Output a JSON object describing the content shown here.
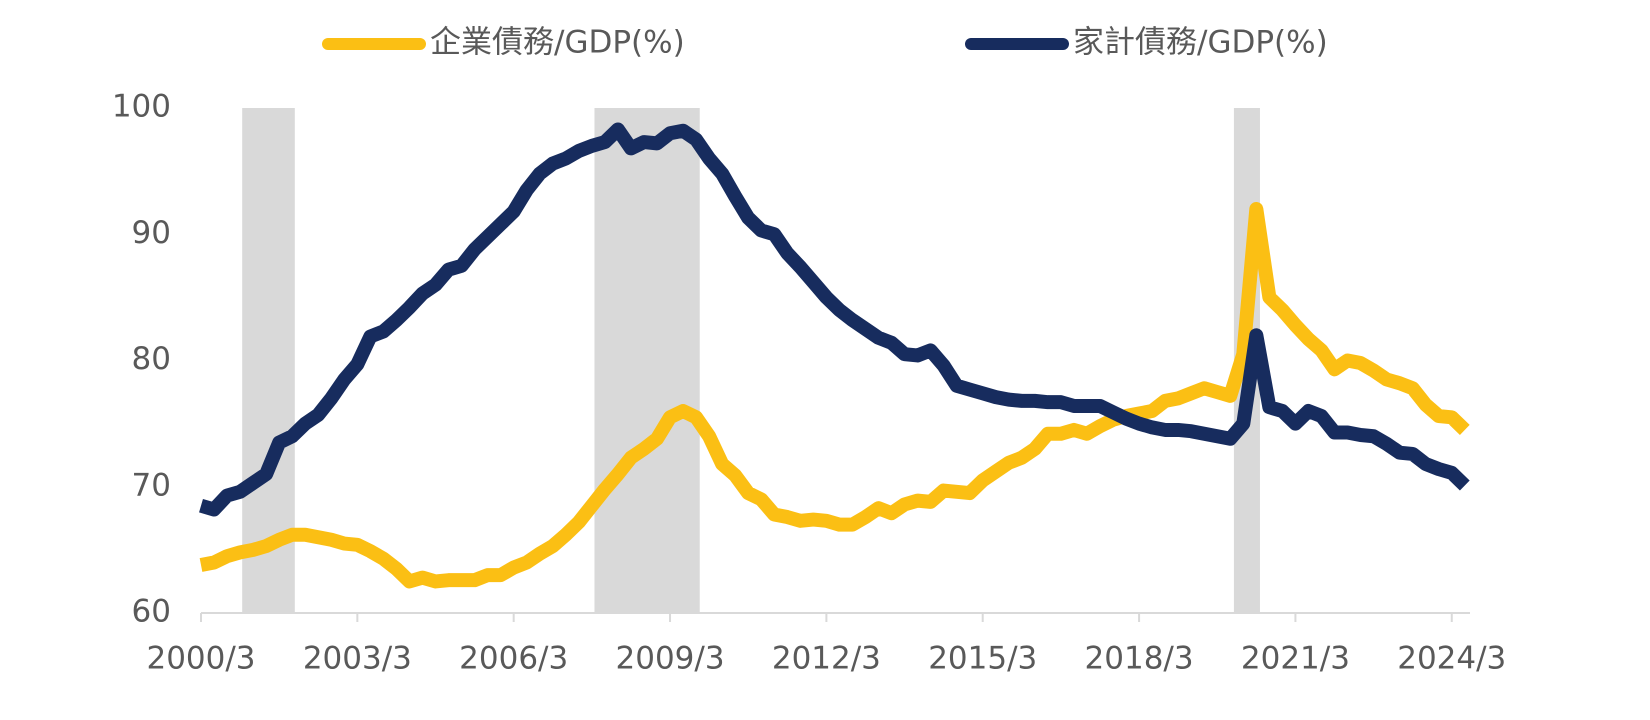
{
  "chart_data": {
    "type": "line",
    "series": [
      {
        "name": "企業債務/GDP(%)",
        "color": "#fbbf14",
        "values": [
          63.8,
          64.0,
          64.5,
          64.8,
          65.0,
          65.3,
          65.8,
          66.2,
          66.2,
          66.0,
          65.8,
          65.5,
          65.4,
          64.9,
          64.3,
          63.5,
          62.5,
          62.8,
          62.5,
          62.6,
          62.6,
          62.6,
          63.0,
          63.0,
          63.6,
          64.0,
          64.7,
          65.3,
          66.2,
          67.2,
          68.5,
          69.8,
          71.0,
          72.3,
          73.0,
          73.8,
          75.5,
          76.0,
          75.5,
          74.0,
          71.8,
          70.9,
          69.5,
          69.0,
          67.8,
          67.6,
          67.3,
          67.4,
          67.3,
          67.0,
          67.0,
          67.6,
          68.3,
          67.9,
          68.6,
          68.9,
          68.8,
          69.7,
          69.6,
          69.5,
          70.5,
          71.2,
          71.9,
          72.3,
          73.0,
          74.2,
          74.2,
          74.5,
          74.2,
          74.8,
          75.3,
          75.6,
          75.8,
          76.0,
          76.8,
          77.0,
          77.4,
          77.8,
          77.5,
          77.2,
          80.5,
          92.0,
          85.0,
          84.0,
          82.8,
          81.7,
          80.8,
          79.3,
          80.0,
          79.8,
          79.2,
          78.5,
          78.2,
          77.8,
          76.5,
          75.6,
          75.5,
          74.5
        ]
      },
      {
        "name": "家計債務/GDP(%)",
        "color": "#172c5e",
        "values": [
          68.5,
          68.2,
          69.3,
          69.6,
          70.3,
          71.0,
          73.5,
          74.0,
          75.0,
          75.7,
          77.0,
          78.5,
          79.7,
          81.9,
          82.3,
          83.2,
          84.2,
          85.3,
          86.0,
          87.2,
          87.5,
          88.8,
          89.8,
          90.8,
          91.8,
          93.5,
          94.8,
          95.6,
          96.0,
          96.6,
          97.0,
          97.3,
          98.3,
          96.8,
          97.3,
          97.2,
          98.0,
          98.2,
          97.5,
          96.0,
          94.8,
          93.0,
          91.3,
          90.3,
          90.0,
          88.5,
          87.4,
          86.2,
          85.0,
          84.0,
          83.2,
          82.5,
          81.8,
          81.4,
          80.5,
          80.4,
          80.8,
          79.6,
          78.0,
          77.7,
          77.4,
          77.1,
          76.9,
          76.8,
          76.8,
          76.7,
          76.7,
          76.4,
          76.4,
          76.4,
          75.9,
          75.4,
          75.0,
          74.7,
          74.5,
          74.5,
          74.4,
          74.2,
          74.0,
          73.8,
          75.0,
          82.0,
          76.3,
          76.0,
          75.0,
          76.0,
          75.6,
          74.3,
          74.3,
          74.1,
          74.0,
          73.4,
          72.7,
          72.6,
          71.8,
          71.4,
          71.1,
          70.1
        ]
      }
    ],
    "x": [
      2000.25,
      2000.5,
      2000.75,
      2001.0,
      2001.25,
      2001.5,
      2001.75,
      2002.0,
      2002.25,
      2002.5,
      2002.75,
      2003.0,
      2003.25,
      2003.5,
      2003.75,
      2004.0,
      2004.25,
      2004.5,
      2004.75,
      2005.0,
      2005.25,
      2005.5,
      2005.75,
      2006.0,
      2006.25,
      2006.5,
      2006.75,
      2007.0,
      2007.25,
      2007.5,
      2007.75,
      2008.0,
      2008.25,
      2008.5,
      2008.75,
      2009.0,
      2009.25,
      2009.5,
      2009.75,
      2010.0,
      2010.25,
      2010.5,
      2010.75,
      2011.0,
      2011.25,
      2011.5,
      2011.75,
      2012.0,
      2012.25,
      2012.5,
      2012.75,
      2013.0,
      2013.25,
      2013.5,
      2013.75,
      2014.0,
      2014.25,
      2014.5,
      2014.75,
      2015.0,
      2015.25,
      2015.5,
      2015.75,
      2016.0,
      2016.25,
      2016.5,
      2016.75,
      2017.0,
      2017.25,
      2017.5,
      2017.75,
      2018.0,
      2018.25,
      2018.5,
      2018.75,
      2019.0,
      2019.25,
      2019.5,
      2019.75,
      2020.0,
      2020.25,
      2020.5,
      2020.75,
      2021.0,
      2021.25,
      2021.5,
      2021.75,
      2022.0,
      2022.25,
      2022.5,
      2022.75,
      2023.0,
      2023.25,
      2023.5,
      2023.75,
      2024.0,
      2024.25,
      2024.5
    ],
    "shaded_periods": [
      [
        2001.04,
        2002.05
      ],
      [
        2007.8,
        2009.82
      ],
      [
        2020.07,
        2020.57
      ]
    ],
    "shade_color": "#d9d9d9",
    "xlim": [
      2000.25,
      2024.6
    ],
    "xticks": [
      {
        "value": 2000.25,
        "label": "2000/3"
      },
      {
        "value": 2003.25,
        "label": "2003/3"
      },
      {
        "value": 2006.25,
        "label": "2006/3"
      },
      {
        "value": 2009.25,
        "label": "2009/3"
      },
      {
        "value": 2012.25,
        "label": "2012/3"
      },
      {
        "value": 2015.25,
        "label": "2015/3"
      },
      {
        "value": 2018.25,
        "label": "2018/3"
      },
      {
        "value": 2021.25,
        "label": "2021/3"
      },
      {
        "value": 2024.25,
        "label": "2024/3"
      }
    ],
    "ylim": [
      60,
      100
    ],
    "yticks": [
      60,
      70,
      80,
      90,
      100
    ],
    "grid": false,
    "legend": "top"
  }
}
